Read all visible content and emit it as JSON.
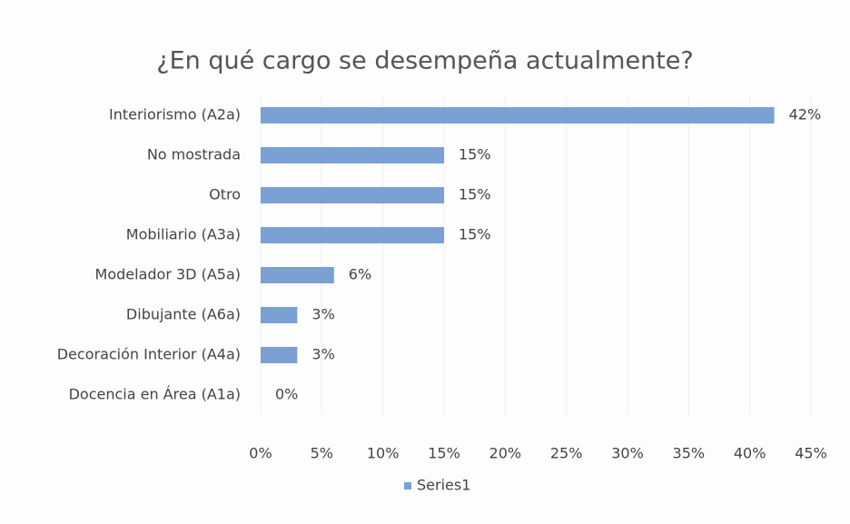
{
  "chart_data": {
    "type": "hbar",
    "title": "¿En qué cargo se desempeña actualmente?",
    "categories": [
      "Interiorismo (A2a)",
      "No mostrada",
      "Otro",
      "Mobiliario (A3a)",
      "Modelador 3D (A5a)",
      "Dibujante (A6a)",
      "Decoración Interior (A4a)",
      "Docencia en Área (A1a)"
    ],
    "series": [
      {
        "name": "Series1",
        "color": "#7ba0d4",
        "values": [
          42,
          15,
          15,
          15,
          6,
          3,
          3,
          0
        ],
        "value_labels": [
          "42%",
          "15%",
          "15%",
          "15%",
          "6%",
          "3%",
          "3%",
          "0%"
        ]
      }
    ],
    "xlim": [
      0,
      45
    ],
    "xticks": [
      {
        "value": 0,
        "label": "0%"
      },
      {
        "value": 5,
        "label": "5%"
      },
      {
        "value": 10,
        "label": "10%"
      },
      {
        "value": 15,
        "label": "15%"
      },
      {
        "value": 20,
        "label": "20%"
      },
      {
        "value": 25,
        "label": "25%"
      },
      {
        "value": 30,
        "label": "30%"
      },
      {
        "value": 35,
        "label": "35%"
      },
      {
        "value": 40,
        "label": "40%"
      },
      {
        "value": 45,
        "label": "45%"
      }
    ],
    "grid": true,
    "legend": "bottom"
  }
}
